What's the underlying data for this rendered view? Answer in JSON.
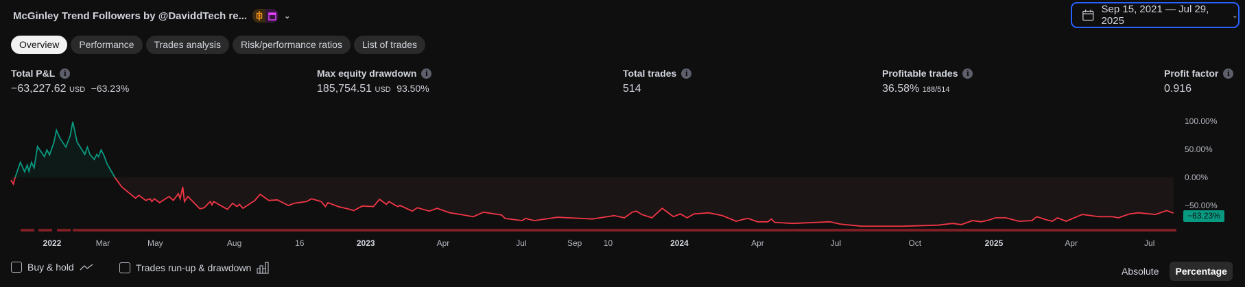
{
  "header": {
    "title": "McGinley Trend Followers by @DaviddTech re...",
    "badges": [
      "candlestick-icon",
      "calendar-icon"
    ],
    "date_range": "Sep 15, 2021 — Jul 29, 2025"
  },
  "tabs": [
    {
      "label": "Overview",
      "active": true
    },
    {
      "label": "Performance"
    },
    {
      "label": "Trades analysis"
    },
    {
      "label": "Risk/performance ratios"
    },
    {
      "label": "List of trades"
    }
  ],
  "stats": {
    "total_pnl": {
      "label": "Total P&L",
      "value": "−63,227.62",
      "unit": "USD",
      "pct": "−63.23%"
    },
    "max_drawdown": {
      "label": "Max equity drawdown",
      "value": "185,754.51",
      "unit": "USD",
      "pct": "93.50%"
    },
    "total_trades": {
      "label": "Total trades",
      "value": "514"
    },
    "profitable_trades": {
      "label": "Profitable trades",
      "value": "36.58%",
      "ratio": "188/514"
    },
    "profit_factor": {
      "label": "Profit factor",
      "value": "0.916"
    }
  },
  "bottom": {
    "buy_hold": "Buy & hold",
    "runup": "Trades run-up & drawdown",
    "absolute": "Absolute",
    "percentage": "Percentage",
    "mode": "Percentage"
  },
  "colors": {
    "positive": "#089981",
    "negative": "#f23645",
    "accent": "#2962ff"
  },
  "chart_data": {
    "type": "area",
    "ylim": [
      -100,
      125
    ],
    "y_ticks": [
      "100.00%",
      "50.00%",
      "0.00%",
      "−50.00%"
    ],
    "y_tick_values": [
      100,
      50,
      0,
      -50
    ],
    "x_ticks": [
      {
        "label": "2022",
        "date": "2022-01-01",
        "year": true
      },
      {
        "label": "Mar",
        "date": "2022-03-01"
      },
      {
        "label": "May",
        "date": "2022-05-01"
      },
      {
        "label": "Aug",
        "date": "2022-08-01"
      },
      {
        "label": "16",
        "date": "2022-10-16"
      },
      {
        "label": "2023",
        "date": "2023-01-01",
        "year": true
      },
      {
        "label": "Apr",
        "date": "2023-04-01"
      },
      {
        "label": "Jul",
        "date": "2023-07-01"
      },
      {
        "label": "Sep",
        "date": "2023-09-01"
      },
      {
        "label": "10",
        "date": "2023-10-10"
      },
      {
        "label": "2024",
        "date": "2024-01-01",
        "year": true
      },
      {
        "label": "Apr",
        "date": "2024-04-01"
      },
      {
        "label": "Jul",
        "date": "2024-07-01"
      },
      {
        "label": "Oct",
        "date": "2024-10-01"
      },
      {
        "label": "2025",
        "date": "2025-01-01",
        "year": true
      },
      {
        "label": "Apr",
        "date": "2025-04-01"
      },
      {
        "label": "Jul",
        "date": "2025-07-01"
      }
    ],
    "last_value_label": "−63.23%",
    "series": [
      {
        "points": [
          [
            "2021-11-14",
            -5
          ],
          [
            "2021-11-17",
            -12
          ],
          [
            "2021-11-19",
            0
          ],
          [
            "2021-11-25",
            27
          ],
          [
            "2021-11-30",
            10
          ],
          [
            "2021-12-03",
            22
          ],
          [
            "2021-12-05",
            11
          ],
          [
            "2021-12-08",
            27
          ],
          [
            "2021-12-11",
            17
          ],
          [
            "2021-12-15",
            55
          ],
          [
            "2021-12-19",
            46
          ],
          [
            "2021-12-23",
            37
          ],
          [
            "2021-12-26",
            49
          ],
          [
            "2021-12-29",
            40
          ],
          [
            "2022-01-03",
            62
          ],
          [
            "2022-01-06",
            84
          ],
          [
            "2022-01-10",
            70
          ],
          [
            "2022-01-17",
            54
          ],
          [
            "2022-01-22",
            74
          ],
          [
            "2022-01-25",
            99
          ],
          [
            "2022-01-30",
            63
          ],
          [
            "2022-02-08",
            41
          ],
          [
            "2022-02-11",
            54
          ],
          [
            "2022-02-14",
            41
          ],
          [
            "2022-02-19",
            32
          ],
          [
            "2022-02-22",
            41
          ],
          [
            "2022-02-24",
            37
          ],
          [
            "2022-02-27",
            49
          ],
          [
            "2022-03-02",
            40
          ],
          [
            "2022-03-06",
            24
          ],
          [
            "2022-03-15",
            0
          ],
          [
            "2022-03-23",
            -17
          ],
          [
            "2022-04-08",
            -37
          ],
          [
            "2022-04-12",
            -32
          ],
          [
            "2022-04-20",
            -41
          ],
          [
            "2022-04-25",
            -38
          ],
          [
            "2022-04-27",
            -43
          ],
          [
            "2022-04-30",
            -38
          ],
          [
            "2022-05-06",
            -45
          ],
          [
            "2022-05-17",
            -34
          ],
          [
            "2022-05-22",
            -41
          ],
          [
            "2022-05-28",
            -29
          ],
          [
            "2022-05-30",
            -38
          ],
          [
            "2022-06-02",
            -17
          ],
          [
            "2022-06-04",
            -43
          ],
          [
            "2022-06-08",
            -34
          ],
          [
            "2022-06-22",
            -56
          ],
          [
            "2022-06-27",
            -54
          ],
          [
            "2022-07-04",
            -43
          ],
          [
            "2022-07-06",
            -49
          ],
          [
            "2022-07-08",
            -43
          ],
          [
            "2022-07-24",
            -57
          ],
          [
            "2022-07-30",
            -46
          ],
          [
            "2022-08-04",
            -52
          ],
          [
            "2022-08-07",
            -48
          ],
          [
            "2022-08-11",
            -55
          ],
          [
            "2022-08-17",
            -49
          ],
          [
            "2022-08-25",
            -41
          ],
          [
            "2022-08-31",
            -30
          ],
          [
            "2022-09-10",
            -41
          ],
          [
            "2022-09-20",
            -40
          ],
          [
            "2022-10-03",
            -50
          ],
          [
            "2022-10-10",
            -46
          ],
          [
            "2022-10-24",
            -43
          ],
          [
            "2022-10-30",
            -38
          ],
          [
            "2022-11-10",
            -43
          ],
          [
            "2022-11-15",
            -52
          ],
          [
            "2022-11-18",
            -45
          ],
          [
            "2022-11-30",
            -52
          ],
          [
            "2022-12-11",
            -56
          ],
          [
            "2022-12-18",
            -59
          ],
          [
            "2022-12-28",
            -51
          ],
          [
            "2023-01-10",
            -52
          ],
          [
            "2023-01-17",
            -39
          ],
          [
            "2023-01-25",
            -48
          ],
          [
            "2023-01-28",
            -43
          ],
          [
            "2023-02-07",
            -52
          ],
          [
            "2023-02-10",
            -50
          ],
          [
            "2023-02-24",
            -60
          ],
          [
            "2023-03-02",
            -54
          ],
          [
            "2023-03-16",
            -60
          ],
          [
            "2023-03-25",
            -55
          ],
          [
            "2023-04-09",
            -63
          ],
          [
            "2023-04-25",
            -67
          ],
          [
            "2023-05-06",
            -70
          ],
          [
            "2023-05-18",
            -62
          ],
          [
            "2023-06-08",
            -67
          ],
          [
            "2023-06-12",
            -73
          ],
          [
            "2023-07-02",
            -77
          ],
          [
            "2023-07-06",
            -73
          ],
          [
            "2023-07-16",
            -77
          ],
          [
            "2023-08-12",
            -71
          ],
          [
            "2023-09-22",
            -74
          ],
          [
            "2023-10-17",
            -68
          ],
          [
            "2023-10-29",
            -72
          ],
          [
            "2023-11-07",
            -62
          ],
          [
            "2023-11-12",
            -60
          ],
          [
            "2023-11-18",
            -66
          ],
          [
            "2023-11-30",
            -72
          ],
          [
            "2023-12-12",
            -55
          ],
          [
            "2023-12-25",
            -70
          ],
          [
            "2024-01-02",
            -65
          ],
          [
            "2024-01-10",
            -72
          ],
          [
            "2024-01-18",
            -65
          ],
          [
            "2024-02-04",
            -63
          ],
          [
            "2024-02-20",
            -68
          ],
          [
            "2024-03-07",
            -78
          ],
          [
            "2024-03-17",
            -74
          ],
          [
            "2024-03-21",
            -73
          ],
          [
            "2024-04-01",
            -79
          ],
          [
            "2024-04-13",
            -79
          ],
          [
            "2024-04-17",
            -74
          ],
          [
            "2024-04-21",
            -80
          ],
          [
            "2024-05-12",
            -82
          ],
          [
            "2024-06-24",
            -79
          ],
          [
            "2024-07-06",
            -83
          ],
          [
            "2024-07-31",
            -87
          ],
          [
            "2024-09-16",
            -87
          ],
          [
            "2024-10-28",
            -85
          ],
          [
            "2024-11-14",
            -82
          ],
          [
            "2024-11-24",
            -84
          ],
          [
            "2024-12-07",
            -77
          ],
          [
            "2024-12-17",
            -79
          ],
          [
            "2024-12-26",
            -76
          ],
          [
            "2025-01-03",
            -72
          ],
          [
            "2025-01-15",
            -72
          ],
          [
            "2025-01-30",
            -78
          ],
          [
            "2025-02-14",
            -77
          ],
          [
            "2025-02-20",
            -70
          ],
          [
            "2025-03-04",
            -76
          ],
          [
            "2025-03-10",
            -78
          ],
          [
            "2025-03-16",
            -72
          ],
          [
            "2025-03-26",
            -78
          ],
          [
            "2025-04-14",
            -66
          ],
          [
            "2025-05-03",
            -70
          ],
          [
            "2025-05-19",
            -70
          ],
          [
            "2025-05-26",
            -72
          ],
          [
            "2025-06-08",
            -65
          ],
          [
            "2025-06-18",
            -63
          ],
          [
            "2025-07-08",
            -66
          ],
          [
            "2025-07-21",
            -59
          ],
          [
            "2025-07-28",
            -63
          ],
          [
            "2025-07-29",
            -63.23
          ]
        ]
      }
    ]
  }
}
